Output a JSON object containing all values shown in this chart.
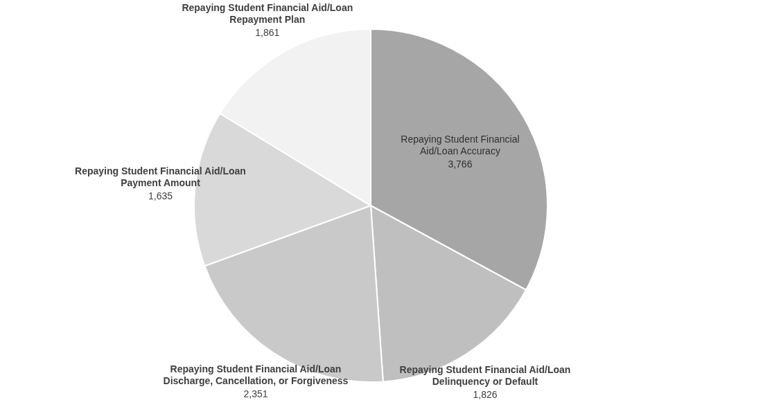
{
  "chart_data": {
    "type": "pie",
    "categories": [
      "Repaying Student Financial Aid/Loan Accuracy",
      "Repaying Student Financial Aid/Loan Delinquency or Default",
      "Repaying Student Financial Aid/Loan Discharge, Cancellation, or Forgiveness",
      "Repaying Student Financial Aid/Loan Payment Amount",
      "Repaying Student Financial Aid/Loan Repayment Plan"
    ],
    "values": [
      3766,
      1826,
      2351,
      1635,
      1861
    ],
    "value_labels": [
      "3,766",
      "1,826",
      "2,351",
      "1,635",
      "1,861"
    ],
    "colors": [
      "#a6a6a6",
      "#bfbfbf",
      "#c9c9c9",
      "#d9d9d9",
      "#f2f2f2"
    ],
    "legend": false
  }
}
